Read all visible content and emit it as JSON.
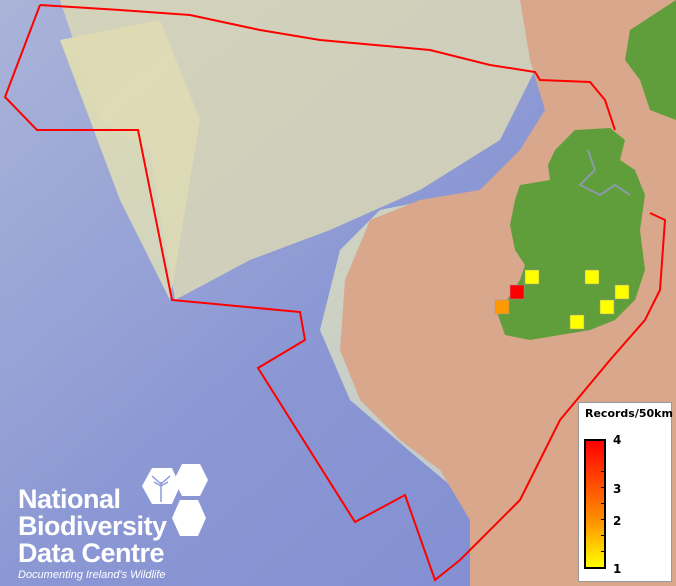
{
  "map": {
    "colors": {
      "deep_sea": "#8e9ad8",
      "shelf": "#d8dcb8",
      "land": "#d9a88c",
      "ireland": "#5f9e3a",
      "boundary": "#ff0000",
      "border": "#8a9aa8"
    },
    "records": [
      {
        "count": 1,
        "color": "#ffff00"
      },
      {
        "count": 1,
        "color": "#ffff00"
      },
      {
        "count": 1,
        "color": "#ffff00"
      },
      {
        "count": 1,
        "color": "#ffff00"
      },
      {
        "count": 1,
        "color": "#ffff00"
      },
      {
        "count": 4,
        "color": "#ff0000"
      },
      {
        "count": 3,
        "color": "#ff9900"
      }
    ]
  },
  "legend": {
    "title": "Records/50km",
    "ticks": [
      "4",
      "3",
      "2",
      "1"
    ],
    "color_scale": [
      "#ffff00",
      "#ff8800",
      "#ff0000"
    ],
    "range": [
      1,
      4
    ]
  },
  "logo": {
    "line1": "National",
    "line2": "Biodiversity",
    "line3": "Data Centre",
    "tagline": "Documenting Ireland's Wildlife"
  }
}
